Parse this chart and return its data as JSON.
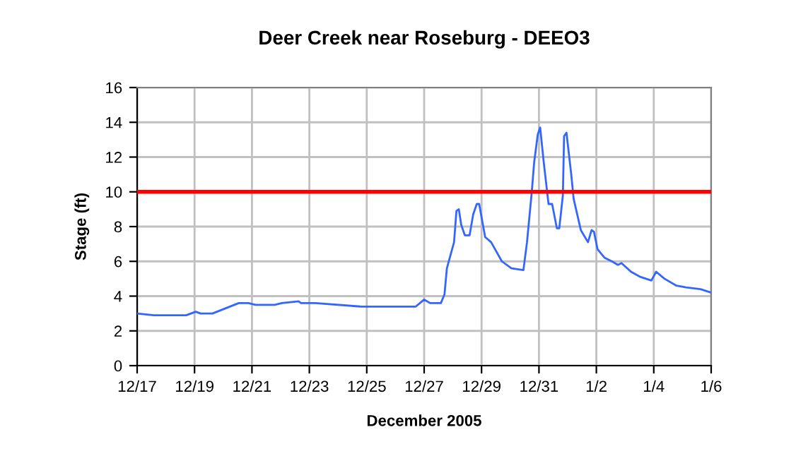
{
  "chart_data": {
    "type": "line",
    "title": "Deer Creek near Roseburg - DEEO3",
    "xlabel": "December 2005",
    "ylabel": "Stage (ft)",
    "x": [
      "2005-12-17T00:00",
      "2005-12-17T14:00",
      "2005-12-18T17:00",
      "2005-12-19T01:00",
      "2005-12-19T05:00",
      "2005-12-19T15:00",
      "2005-12-20T13:00",
      "2005-12-20T21:00",
      "2005-12-21T03:00",
      "2005-12-21T19:00",
      "2005-12-22T01:00",
      "2005-12-22T15:00",
      "2005-12-22T17:00",
      "2005-12-23T05:00",
      "2005-12-24T19:00",
      "2005-12-26T17:00",
      "2005-12-27T00:00",
      "2005-12-27T05:00",
      "2005-12-27T14:00",
      "2005-12-27T17:00",
      "2005-12-27T19:00",
      "2005-12-28T01:00",
      "2005-12-28T03:00",
      "2005-12-28T05:00",
      "2005-12-28T07:00",
      "2005-12-28T10:00",
      "2005-12-28T14:00",
      "2005-12-28T17:00",
      "2005-12-28T20:00",
      "2005-12-28T22:00",
      "2005-12-29T03:00",
      "2005-12-29T08:00",
      "2005-12-29T17:00",
      "2005-12-30T01:00",
      "2005-12-30T11:00",
      "2005-12-30T14:00",
      "2005-12-30T18:00",
      "2005-12-30T20:00",
      "2005-12-30T23:00",
      "2005-12-31T01:00",
      "2005-12-31T04:00",
      "2005-12-31T08:00",
      "2005-12-31T11:00",
      "2005-12-31T15:00",
      "2005-12-31T17:00",
      "2005-12-31T20:00",
      "2005-12-31T21:00",
      "2005-12-31T23:00",
      "2006-01-01T03:00",
      "2006-01-01T05:00",
      "2006-01-01T11:00",
      "2006-01-01T17:00",
      "2006-01-01T20:00",
      "2006-01-01T22:00",
      "2006-01-02T01:00",
      "2006-01-02T07:00",
      "2006-01-02T13:00",
      "2006-01-02T18:00",
      "2006-01-02T21:00",
      "2006-01-03T05:00",
      "2006-01-03T13:00",
      "2006-01-03T22:00",
      "2006-01-04T02:00",
      "2006-01-04T09:00",
      "2006-01-04T19:00",
      "2006-01-05T03:00",
      "2006-01-05T15:00",
      "2006-01-06T00:00"
    ],
    "series": [
      {
        "color": "#3366ff",
        "values": [
          3.0,
          2.9,
          2.9,
          3.1,
          3.0,
          3.0,
          3.6,
          3.6,
          3.5,
          3.5,
          3.6,
          3.7,
          3.6,
          3.6,
          3.4,
          3.4,
          3.8,
          3.6,
          3.6,
          4.1,
          5.6,
          7.1,
          8.9,
          9.0,
          8.1,
          7.5,
          7.5,
          8.7,
          9.3,
          9.3,
          7.4,
          7.1,
          6.0,
          5.6,
          5.5,
          7.1,
          10.0,
          11.7,
          13.3,
          13.7,
          11.7,
          9.3,
          9.3,
          7.9,
          7.9,
          9.8,
          13.2,
          13.4,
          11.0,
          9.6,
          7.8,
          7.1,
          7.8,
          7.7,
          6.7,
          6.2,
          6.0,
          5.8,
          5.9,
          5.4,
          5.1,
          4.9,
          5.4,
          5.0,
          4.6,
          4.5,
          4.4,
          4.2
        ]
      }
    ],
    "xlim": [
      "2005-12-17",
      "2006-01-06"
    ],
    "xticks": [
      {
        "value": "2005-12-17",
        "label": "12/17"
      },
      {
        "value": "2005-12-19",
        "label": "12/19"
      },
      {
        "value": "2005-12-21",
        "label": "12/21"
      },
      {
        "value": "2005-12-23",
        "label": "12/23"
      },
      {
        "value": "2005-12-25",
        "label": "12/25"
      },
      {
        "value": "2005-12-27",
        "label": "12/27"
      },
      {
        "value": "2005-12-29",
        "label": "12/29"
      },
      {
        "value": "2005-12-31",
        "label": "12/31"
      },
      {
        "value": "2006-01-02",
        "label": "1/2"
      },
      {
        "value": "2006-01-04",
        "label": "1/4"
      },
      {
        "value": "2006-01-06",
        "label": "1/6"
      }
    ],
    "ylim": [
      0,
      16
    ],
    "yticks": [
      0,
      2,
      4,
      6,
      8,
      10,
      12,
      14,
      16
    ],
    "ref_lines": [
      {
        "axis": "y",
        "value": 10,
        "color": "#ff0000"
      }
    ],
    "grid": true,
    "marker": "none",
    "line_style": "solid",
    "legend": false
  }
}
